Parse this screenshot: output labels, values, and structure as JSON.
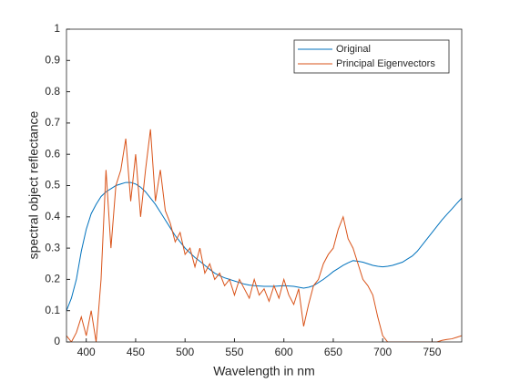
{
  "chart_data": {
    "type": "line",
    "xlabel": "Wavelength in nm",
    "ylabel": "spectral object reflectance",
    "x": [
      380,
      385,
      390,
      395,
      400,
      405,
      410,
      415,
      420,
      425,
      430,
      435,
      440,
      445,
      450,
      455,
      460,
      465,
      470,
      475,
      480,
      485,
      490,
      495,
      500,
      505,
      510,
      515,
      520,
      525,
      530,
      535,
      540,
      545,
      550,
      555,
      560,
      565,
      570,
      575,
      580,
      585,
      590,
      595,
      600,
      605,
      610,
      615,
      620,
      625,
      630,
      635,
      640,
      645,
      650,
      655,
      660,
      665,
      670,
      675,
      680,
      685,
      690,
      695,
      700,
      705,
      710,
      715,
      720,
      725,
      730,
      735,
      740,
      745,
      750,
      755,
      760,
      765,
      770,
      775,
      780
    ],
    "series": [
      {
        "name": "Original",
        "color": "#0072bd",
        "values": [
          0.1,
          0.14,
          0.2,
          0.29,
          0.36,
          0.41,
          0.44,
          0.465,
          0.48,
          0.49,
          0.5,
          0.505,
          0.51,
          0.51,
          0.505,
          0.495,
          0.48,
          0.46,
          0.44,
          0.415,
          0.39,
          0.365,
          0.34,
          0.32,
          0.3,
          0.285,
          0.27,
          0.258,
          0.245,
          0.232,
          0.22,
          0.212,
          0.205,
          0.2,
          0.195,
          0.19,
          0.185,
          0.182,
          0.18,
          0.179,
          0.178,
          0.178,
          0.178,
          0.179,
          0.18,
          0.179,
          0.178,
          0.175,
          0.172,
          0.175,
          0.18,
          0.19,
          0.2,
          0.212,
          0.225,
          0.235,
          0.245,
          0.253,
          0.26,
          0.258,
          0.255,
          0.25,
          0.245,
          0.242,
          0.24,
          0.242,
          0.245,
          0.25,
          0.255,
          0.265,
          0.275,
          0.29,
          0.31,
          0.33,
          0.35,
          0.37,
          0.39,
          0.408,
          0.425,
          0.443,
          0.46
        ]
      },
      {
        "name": "Principal Eigenvectors",
        "color": "#d95319",
        "values": [
          0.02,
          0,
          0.03,
          0.08,
          0.02,
          0.1,
          0,
          0.2,
          0.55,
          0.3,
          0.5,
          0.55,
          0.65,
          0.45,
          0.6,
          0.4,
          0.55,
          0.68,
          0.45,
          0.55,
          0.42,
          0.38,
          0.32,
          0.35,
          0.28,
          0.3,
          0.24,
          0.3,
          0.22,
          0.25,
          0.2,
          0.22,
          0.18,
          0.2,
          0.15,
          0.2,
          0.17,
          0.14,
          0.2,
          0.15,
          0.17,
          0.13,
          0.18,
          0.14,
          0.2,
          0.15,
          0.12,
          0.17,
          0.05,
          0.12,
          0.18,
          0.2,
          0.25,
          0.28,
          0.3,
          0.36,
          0.4,
          0.33,
          0.3,
          0.25,
          0.2,
          0.18,
          0.15,
          0.08,
          0.02,
          0,
          0,
          0,
          0,
          0,
          0,
          0,
          0,
          0,
          0,
          0,
          0.005,
          0.008,
          0.01,
          0.015,
          0.02
        ]
      }
    ],
    "xlim": [
      380,
      780
    ],
    "xticks": [
      400,
      450,
      500,
      550,
      600,
      650,
      700,
      750
    ],
    "ylim": [
      0,
      1
    ],
    "yticks": [
      0,
      0.1,
      0.2,
      0.3,
      0.4,
      0.5,
      0.6,
      0.7,
      0.8,
      0.9,
      1
    ],
    "legend": "top-right"
  }
}
